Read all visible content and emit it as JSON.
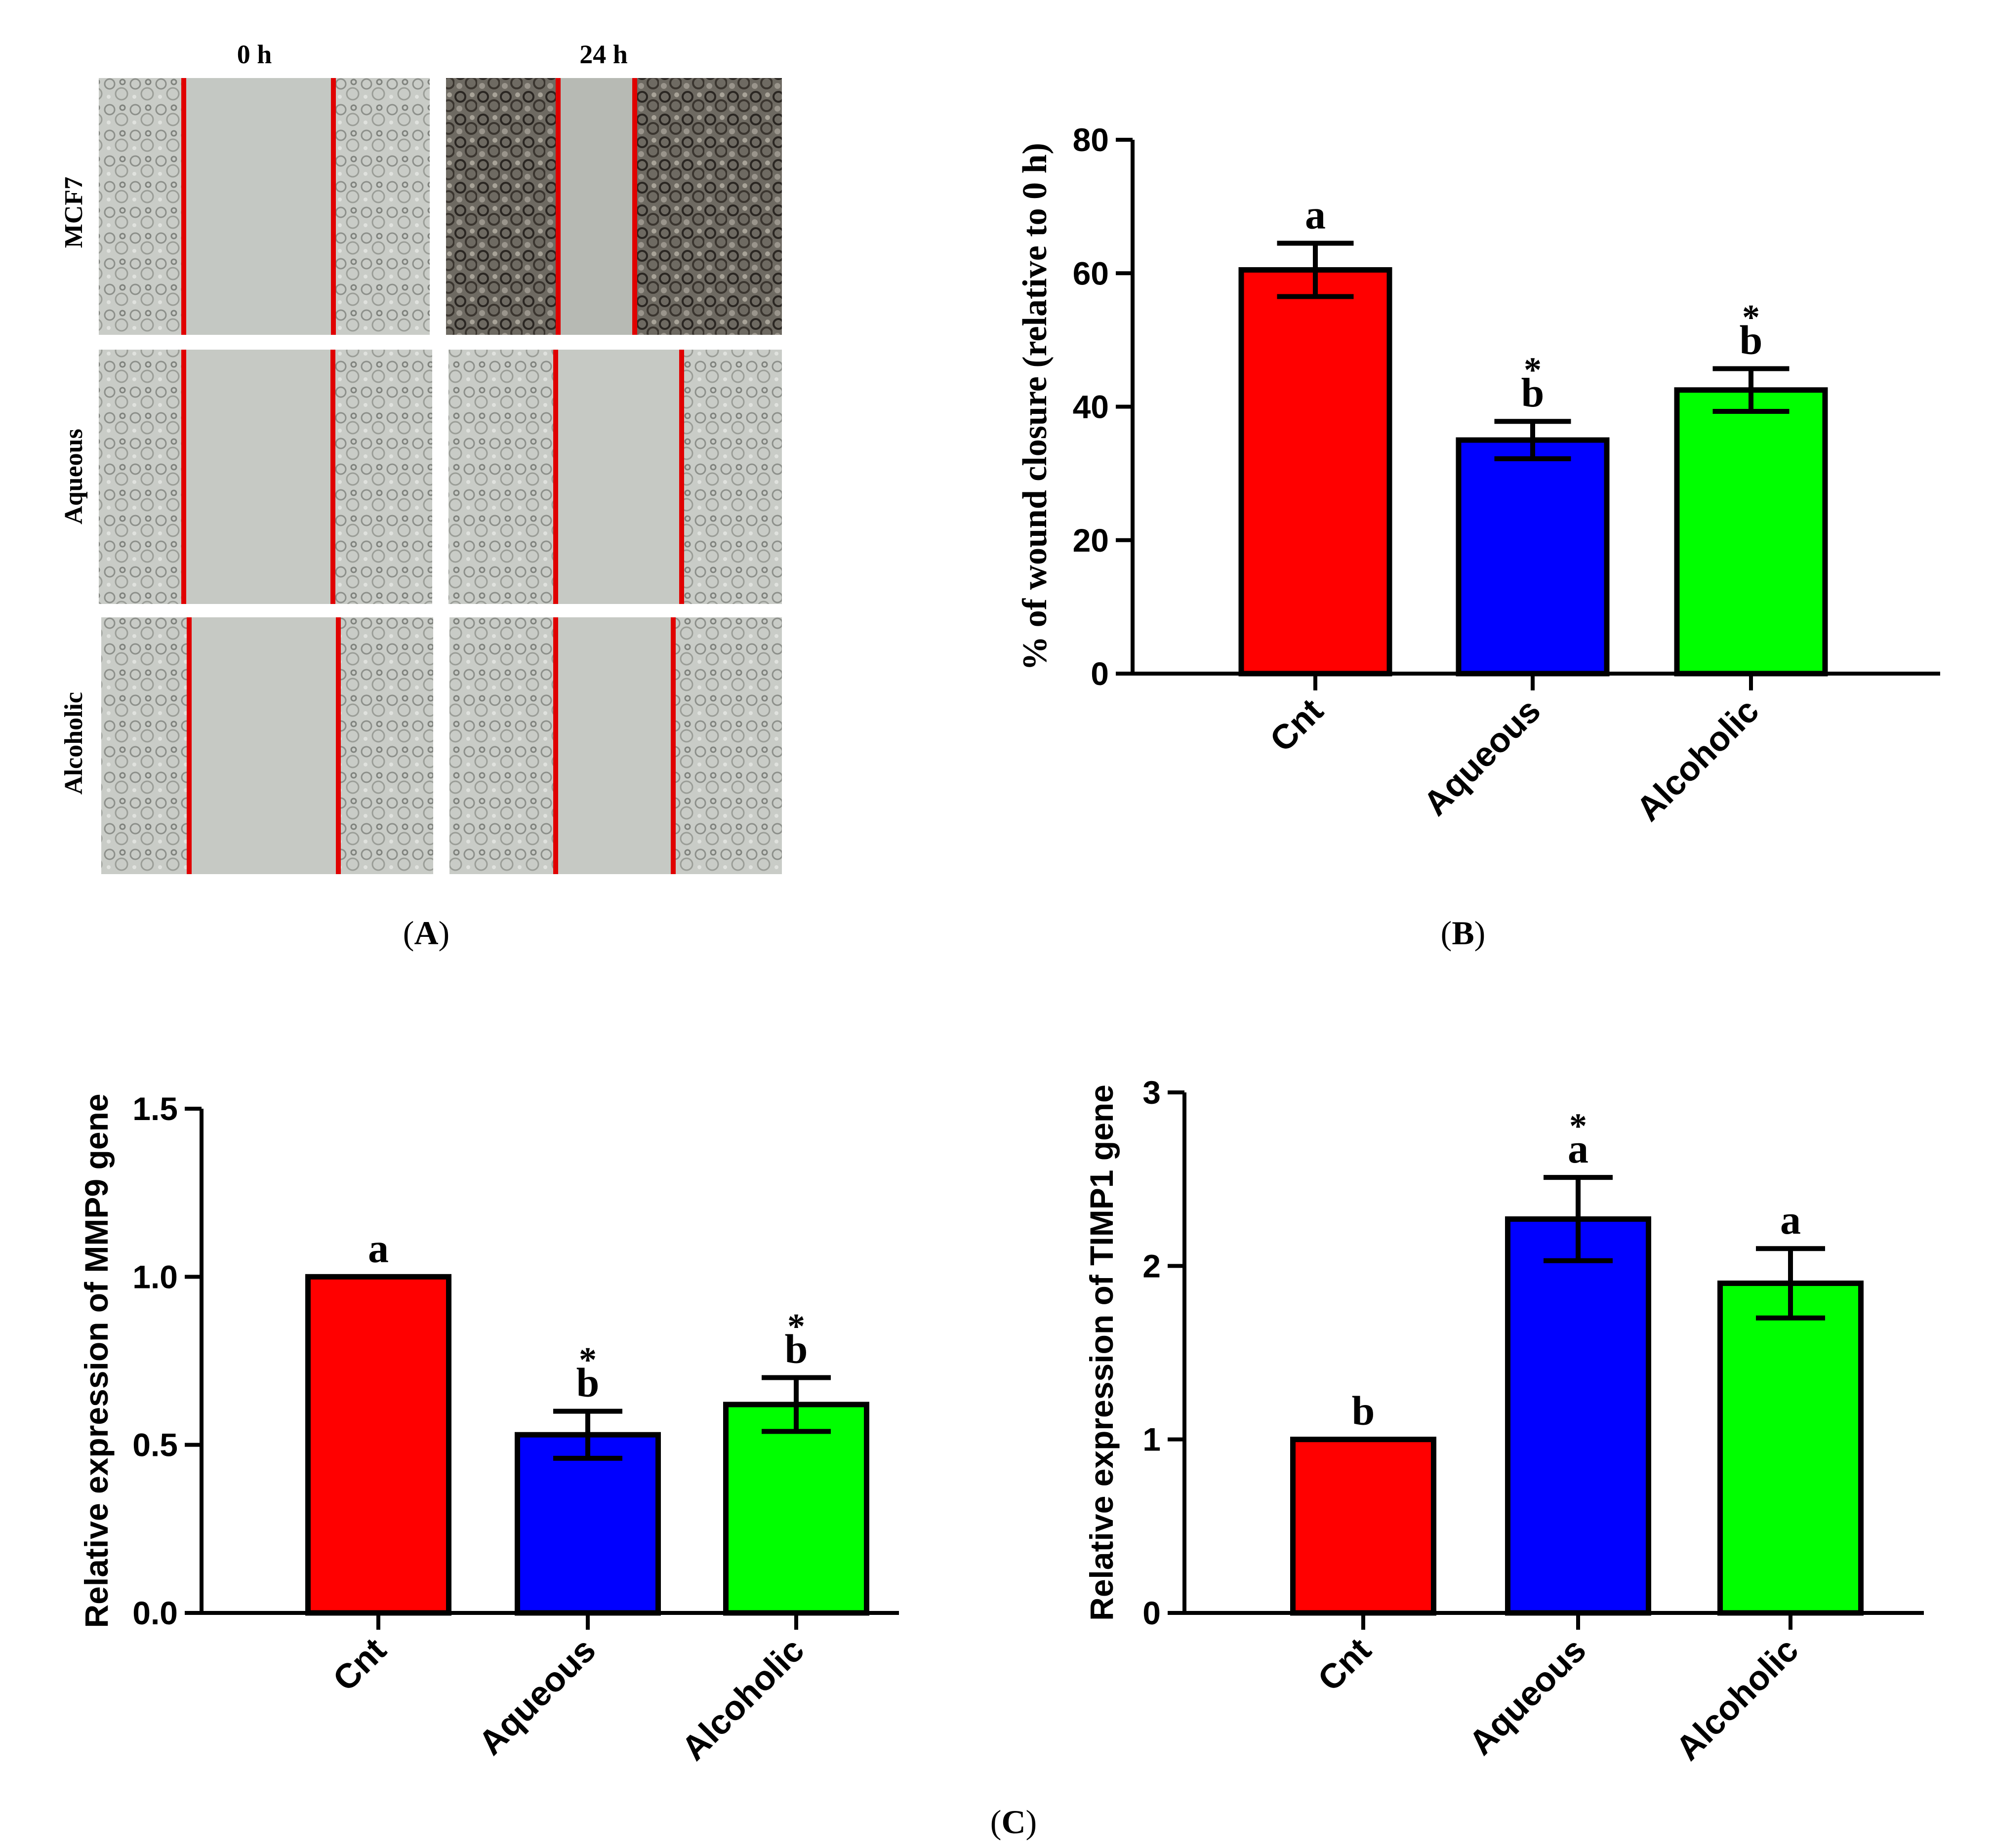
{
  "panel_a": {
    "label_open": "(",
    "label_letter": "A",
    "label_close": ")",
    "columns": [
      "0 h",
      "24 h"
    ],
    "rows": [
      "MCF7",
      "Aqueous",
      "Alcoholic"
    ],
    "wound_line_color": "#e00000"
  },
  "panel_c_label": {
    "open": "(",
    "letter": "C",
    "close": ")"
  },
  "chart_data": [
    {
      "type": "bar",
      "panel": "B",
      "panel_label": {
        "open": "(",
        "letter": "B",
        "close": ")"
      },
      "categories": [
        "Cnt",
        "Aqueous",
        "Alcoholic"
      ],
      "values": [
        60.5,
        35,
        42.5
      ],
      "errors": [
        4,
        2.8,
        3.2
      ],
      "colors": [
        "#ff0000",
        "#0000ff",
        "#00ff00"
      ],
      "letters": [
        "a",
        "b",
        "b"
      ],
      "stars": [
        "",
        "*",
        "*"
      ],
      "ylabel": "% of wound closure (relative to 0 h)",
      "ylim": [
        0,
        80
      ],
      "yticks": [
        0,
        20,
        40,
        60,
        80
      ],
      "ytick_labels": [
        "0",
        "20",
        "40",
        "60",
        "80"
      ]
    },
    {
      "type": "bar",
      "panel": "C-left",
      "categories": [
        "Cnt",
        "Aqueous",
        "Alcoholic"
      ],
      "values": [
        1.0,
        0.53,
        0.62
      ],
      "errors": [
        0,
        0.07,
        0.08
      ],
      "colors": [
        "#ff0000",
        "#0000ff",
        "#00ff00"
      ],
      "letters": [
        "a",
        "b",
        "b"
      ],
      "stars": [
        "",
        "*",
        "*"
      ],
      "ylabel": "Relative expression of MMP9 gene",
      "ylim": [
        0,
        1.5
      ],
      "yticks": [
        0,
        0.5,
        1.0,
        1.5
      ],
      "ytick_labels": [
        "0.0",
        "0.5",
        "1.0",
        "1.5"
      ]
    },
    {
      "type": "bar",
      "panel": "C-right",
      "categories": [
        "Cnt",
        "Aqueous",
        "Alcoholic"
      ],
      "values": [
        1.0,
        2.27,
        1.9
      ],
      "errors": [
        0,
        0.24,
        0.2
      ],
      "colors": [
        "#ff0000",
        "#0000ff",
        "#00ff00"
      ],
      "letters": [
        "b",
        "a",
        "a"
      ],
      "stars": [
        "",
        "*",
        ""
      ],
      "ylabel": "Relative expression of TIMP1 gene",
      "ylim": [
        0,
        3
      ],
      "yticks": [
        0,
        1,
        2,
        3
      ],
      "ytick_labels": [
        "0",
        "1",
        "2",
        "3"
      ]
    }
  ]
}
